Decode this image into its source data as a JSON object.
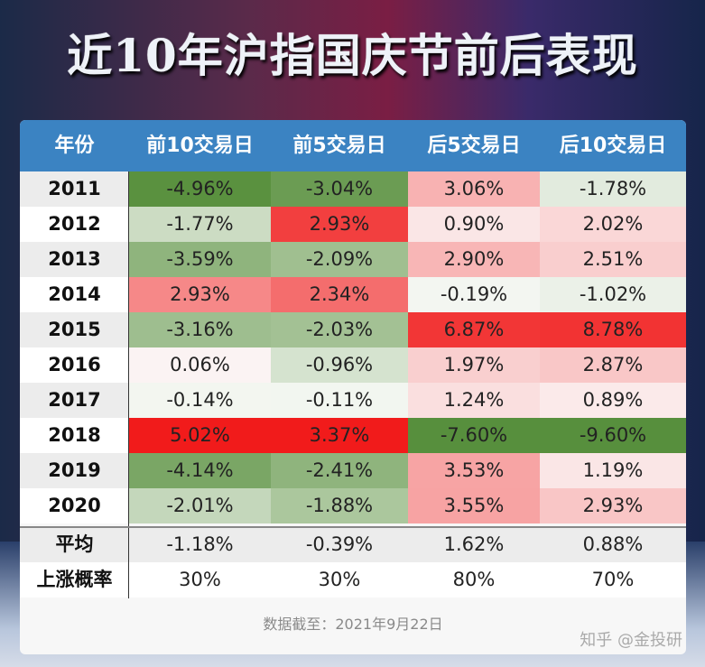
{
  "title": "近10年沪指国庆节前后表现",
  "chart_data": {
    "type": "table",
    "columns": [
      "年份",
      "前10交易日",
      "前5交易日",
      "后5交易日",
      "后10交易日"
    ],
    "rows": [
      {
        "year": "2011",
        "values": [
          "-4.96%",
          "-3.04%",
          "3.06%",
          "-1.78%"
        ]
      },
      {
        "year": "2012",
        "values": [
          "-1.77%",
          "2.93%",
          "0.90%",
          "2.02%"
        ]
      },
      {
        "year": "2013",
        "values": [
          "-3.59%",
          "-2.09%",
          "2.90%",
          "2.51%"
        ]
      },
      {
        "year": "2014",
        "values": [
          "2.93%",
          "2.34%",
          "-0.19%",
          "-1.02%"
        ]
      },
      {
        "year": "2015",
        "values": [
          "-3.16%",
          "-2.03%",
          "6.87%",
          "8.78%"
        ]
      },
      {
        "year": "2016",
        "values": [
          "0.06%",
          "-0.96%",
          "1.97%",
          "2.87%"
        ]
      },
      {
        "year": "2017",
        "values": [
          "-0.14%",
          "-0.11%",
          "1.24%",
          "0.89%"
        ]
      },
      {
        "year": "2018",
        "values": [
          "5.02%",
          "3.37%",
          "-7.60%",
          "-9.60%"
        ]
      },
      {
        "year": "2019",
        "values": [
          "-4.14%",
          "-2.41%",
          "3.53%",
          "1.19%"
        ]
      },
      {
        "year": "2020",
        "values": [
          "-2.01%",
          "-1.88%",
          "3.55%",
          "2.93%"
        ]
      }
    ],
    "summary": [
      {
        "label": "平均",
        "values": [
          "-1.18%",
          "-0.39%",
          "1.62%",
          "0.88%"
        ]
      },
      {
        "label": "上涨概率",
        "values": [
          "30%",
          "30%",
          "80%",
          "70%"
        ]
      }
    ],
    "colors": {
      "positive": "#f01010",
      "negative": "#4f8a33",
      "header": "#3b83c2"
    }
  },
  "footer": "数据截至：2021年9月22日",
  "watermark": "知乎 @金投研"
}
